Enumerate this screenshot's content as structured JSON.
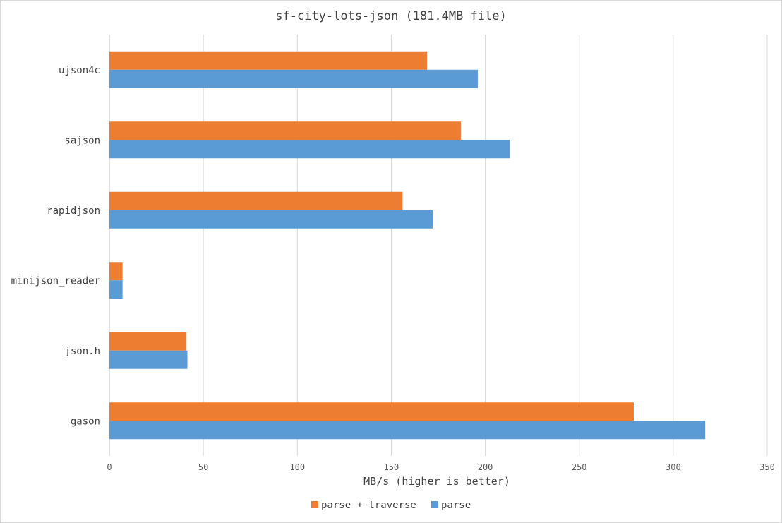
{
  "chart_data": {
    "type": "bar",
    "orientation": "horizontal",
    "title": "sf-city-lots-json (181.4MB file)",
    "xlabel": "MB/s (higher is better)",
    "ylabel": "",
    "categories": [
      "ujson4c",
      "sajson",
      "rapidjson",
      "minijson_reader",
      "json.h",
      "gason"
    ],
    "series": [
      {
        "name": "parse + traverse",
        "color": "#ed7d31",
        "values": [
          169,
          187,
          156,
          7,
          41,
          279
        ]
      },
      {
        "name": "parse",
        "color": "#5b9bd5",
        "values": [
          196,
          213,
          172,
          7,
          41.5,
          317
        ]
      }
    ],
    "xlim": [
      0,
      350
    ],
    "xticks": [
      0,
      50,
      100,
      150,
      200,
      250,
      300,
      350
    ],
    "grid": "vertical",
    "legend_position": "bottom"
  }
}
